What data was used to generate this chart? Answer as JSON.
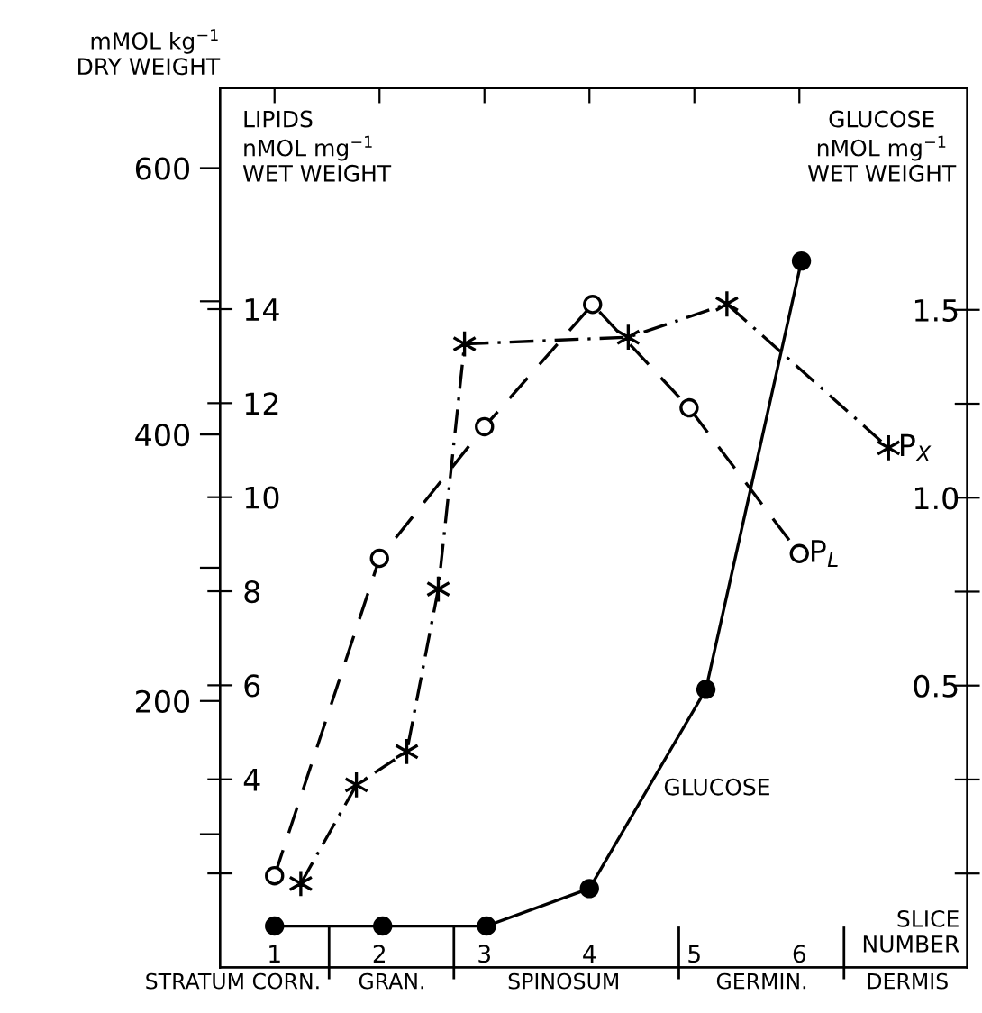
{
  "chart_data": {
    "type": "line",
    "xlabel": "SLICE\nNUMBER",
    "ylabel": "mMOL kg$^{−1}$\nDRY WEIGHT",
    "y2label": "GLUCOSE\nnMOL mg$^{−1}$\nWET WEIGHT",
    "y3label": "LIPIDS\nnMOL mg$^{−1}$\nWET WEIGHT",
    "xlim": [
      0.48,
      7.6
    ],
    "xticks": [
      1,
      2,
      3,
      4,
      5,
      6
    ],
    "annotations": [
      "STRATUM CORN.",
      "GRAN.",
      "SPINOSUM",
      "GERMIN.",
      "DERMIS"
    ],
    "ylim": [
      0,
      660
    ],
    "yticks": [
      {
        "value": 100,
        "label": null
      },
      200,
      {
        "value": 300,
        "label": null
      },
      400,
      {
        "value": 500,
        "label": null
      },
      600
    ],
    "y2lim": [
      -0.25,
      2.09
    ],
    "y2ticks": [
      {
        "value": 0,
        "label": null
      },
      {
        "value": 0.25,
        "label": null
      },
      0.5,
      {
        "value": 0.75,
        "label": null
      },
      {
        "value": 1.0,
        "label": "1.0"
      },
      {
        "value": 1.25,
        "label": null
      },
      1.5
    ],
    "y3lim": [
      0,
      18.7
    ],
    "y3ticks": [
      {
        "value": 2,
        "label": null
      },
      4,
      6,
      8,
      10,
      12,
      14
    ],
    "grid": false,
    "legend": false,
    "series": [
      {
        "name": "P$_{L}$",
        "color": "#000000",
        "axis": "y3",
        "marker": "circle",
        "line_style": "dashed",
        "x": [
          1.0,
          2.0,
          3.0,
          4.03,
          4.95,
          6.0
        ],
        "values": [
          1.95,
          8.7,
          11.5,
          14.1,
          11.9,
          8.8
        ]
      },
      {
        "name": "P$_{X}$",
        "color": "#000000",
        "axis": "y",
        "marker": "cross",
        "line_style": "dashdot",
        "x": [
          1.25,
          1.78,
          2.26,
          2.56,
          2.81,
          4.37,
          5.31,
          6.85
        ],
        "values": [
          63,
          137,
          162,
          284,
          468,
          473,
          498,
          390
        ]
      },
      {
        "name": "GLUCOSE",
        "color": "#000000",
        "axis": "y2",
        "marker": "circle",
        "line_style": "solid",
        "x": [
          1.0,
          2.03,
          3.02,
          4.0,
          5.11,
          6.02
        ],
        "values": [
          -0.14,
          -0.14,
          -0.14,
          -0.04,
          0.49,
          1.63
        ]
      }
    ]
  }
}
